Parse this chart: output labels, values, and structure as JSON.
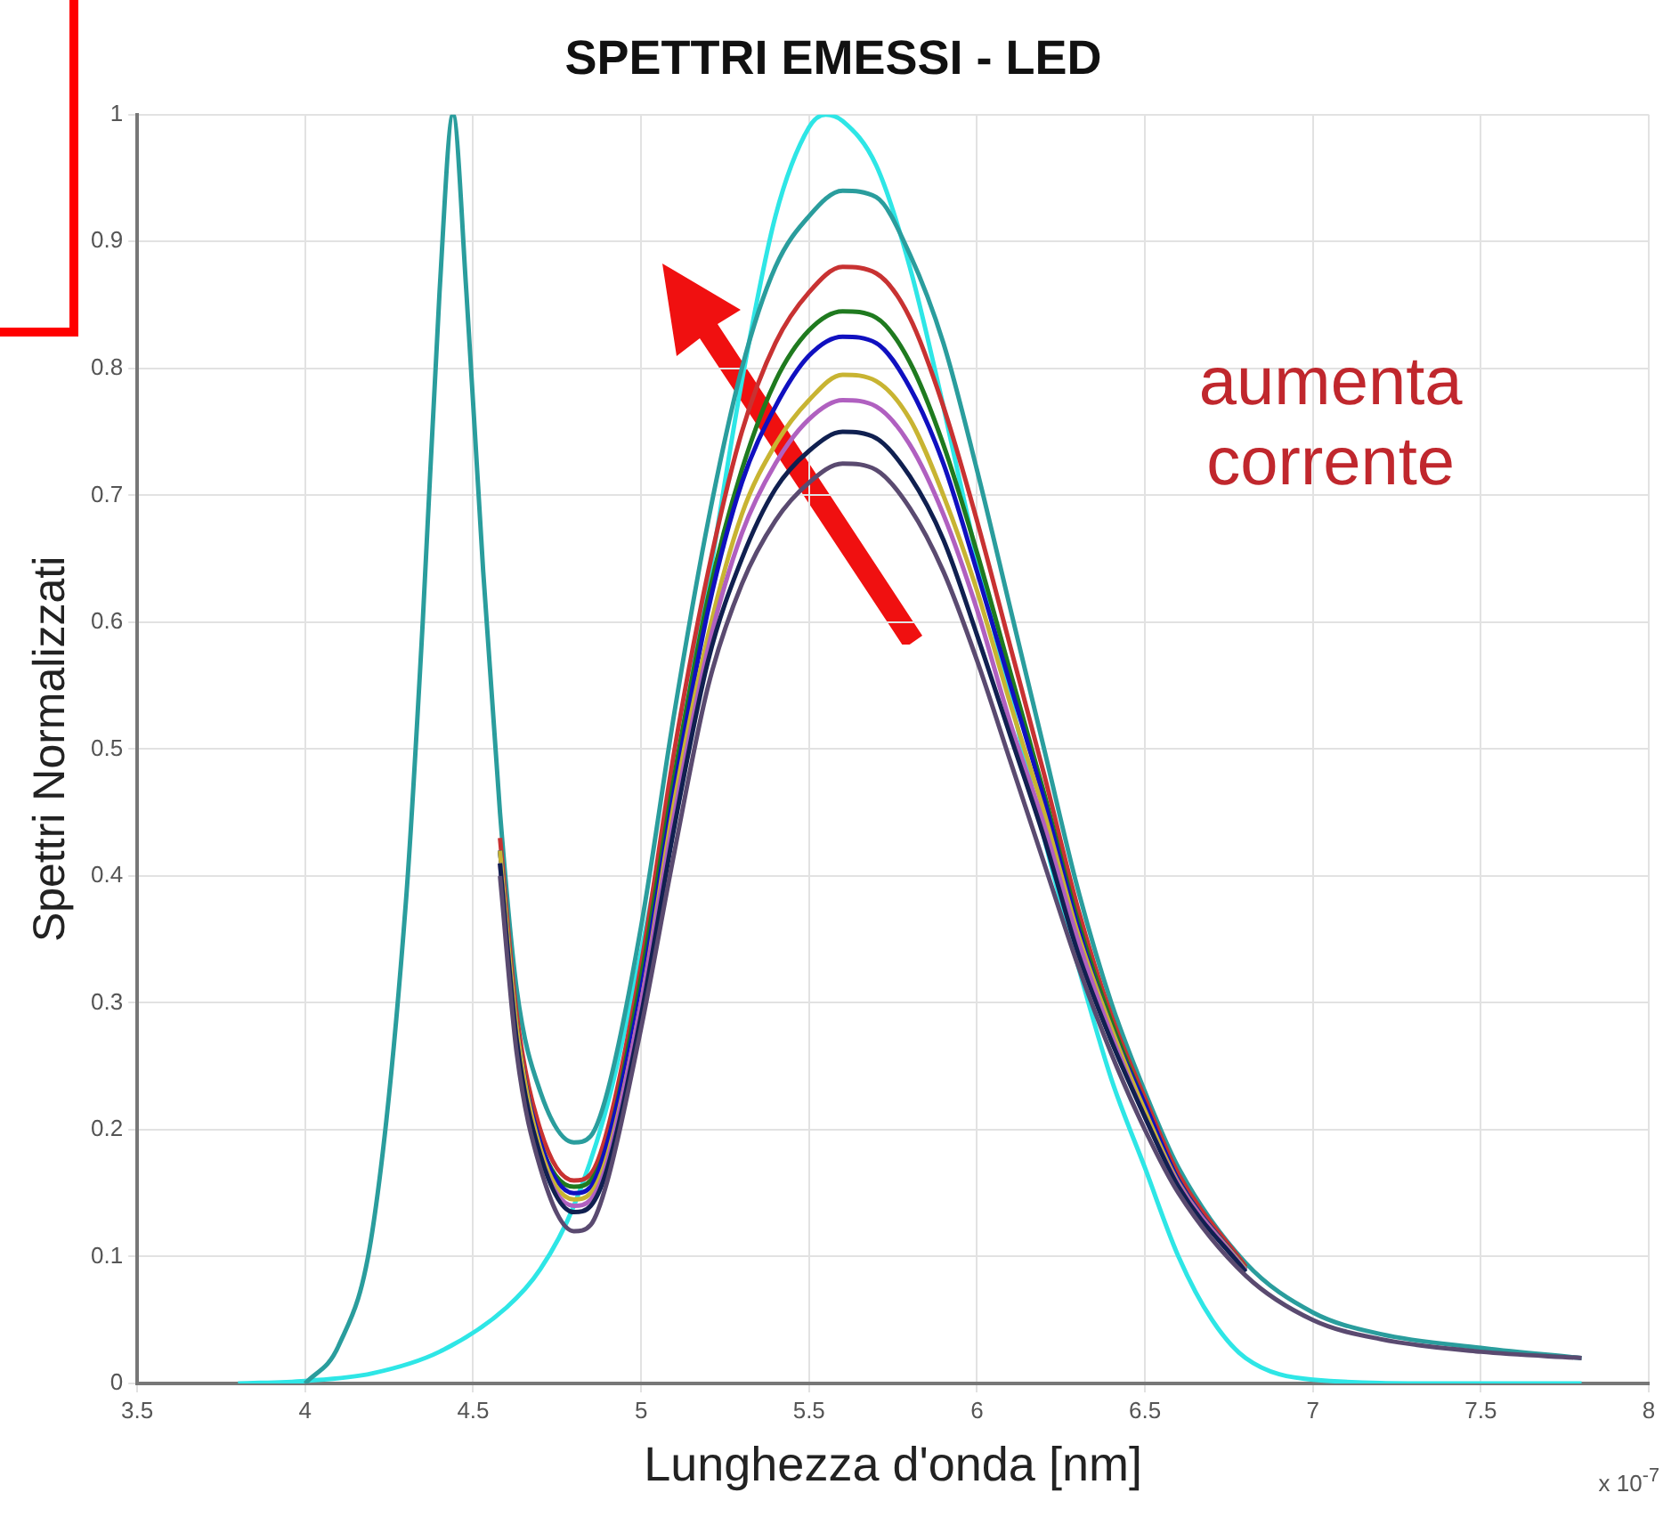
{
  "chart_data": {
    "type": "line",
    "title": "SPETTRI EMESSI - LED",
    "xlabel": "Lunghezza d'onda [nm]",
    "ylabel": "Spettri Normalizzati",
    "annotations": [
      "aumenta corrente",
      "x 10$^{-7}$"
    ],
    "xlim": [
      3.5,
      8
    ],
    "xticks": [
      3.5,
      4,
      4.5,
      5,
      5.5,
      6,
      6.5,
      7,
      7.5,
      8
    ],
    "ylim": [
      0,
      1
    ],
    "yticks": [
      0,
      0.1,
      0.2,
      0.3,
      0.4,
      0.5,
      0.6,
      0.7,
      0.8,
      0.9,
      1
    ],
    "grid": true,
    "legend": false,
    "marker": "none",
    "line_style": "solid",
    "x": [
      4.0,
      4.1,
      4.2,
      4.3,
      4.35,
      4.4,
      4.44,
      4.48,
      4.53,
      4.58,
      4.63,
      4.7,
      4.8,
      4.85,
      4.9,
      5.0,
      5.1,
      5.2,
      5.3,
      5.4,
      5.5,
      5.6,
      5.7,
      5.8,
      5.9,
      6.0,
      6.1,
      6.2,
      6.3,
      6.4,
      6.5,
      6.6,
      6.8,
      7.0,
      7.2,
      7.5,
      7.8
    ],
    "series": [
      {
        "color": "#5a4a70",
        "values": [
          null,
          null,
          null,
          null,
          null,
          null,
          null,
          null,
          null,
          0.4,
          0.26,
          0.17,
          0.12,
          0.125,
          0.16,
          0.28,
          0.42,
          0.55,
          0.63,
          0.68,
          0.71,
          0.725,
          0.72,
          0.69,
          0.64,
          0.57,
          0.49,
          0.41,
          0.33,
          0.26,
          0.2,
          0.15,
          0.085,
          0.05,
          0.035,
          0.025,
          0.02
        ]
      },
      {
        "color": "#102050",
        "values": [
          null,
          null,
          null,
          null,
          null,
          null,
          null,
          null,
          null,
          0.41,
          0.27,
          0.18,
          0.135,
          0.14,
          0.17,
          0.29,
          0.44,
          0.57,
          0.65,
          0.705,
          0.735,
          0.75,
          0.745,
          0.715,
          0.665,
          0.59,
          0.51,
          0.43,
          0.34,
          0.27,
          0.21,
          0.155,
          0.088,
          null,
          null,
          null,
          null
        ]
      },
      {
        "color": "#b060c0",
        "values": [
          null,
          null,
          null,
          null,
          null,
          null,
          null,
          null,
          null,
          0.41,
          0.27,
          0.18,
          0.14,
          0.145,
          0.175,
          0.3,
          0.45,
          0.58,
          0.67,
          0.725,
          0.76,
          0.775,
          0.77,
          0.74,
          0.685,
          0.61,
          0.52,
          0.44,
          0.35,
          0.275,
          0.21,
          0.157,
          0.089,
          null,
          null,
          null,
          null
        ]
      },
      {
        "color": "#c8b432",
        "values": [
          null,
          null,
          null,
          null,
          null,
          null,
          null,
          null,
          null,
          0.42,
          0.28,
          0.185,
          0.145,
          0.15,
          0.18,
          0.3,
          0.46,
          0.59,
          0.685,
          0.74,
          0.775,
          0.795,
          0.79,
          0.76,
          0.7,
          0.625,
          0.535,
          0.45,
          0.355,
          0.28,
          0.215,
          0.158,
          0.09,
          null,
          null,
          null,
          null
        ]
      },
      {
        "color": "#1010c0",
        "values": [
          null,
          null,
          null,
          null,
          null,
          null,
          null,
          null,
          null,
          0.42,
          0.28,
          0.19,
          0.15,
          0.155,
          0.19,
          0.31,
          0.47,
          0.61,
          0.71,
          0.77,
          0.81,
          0.825,
          0.82,
          0.785,
          0.725,
          0.64,
          0.55,
          0.46,
          0.36,
          0.28,
          0.22,
          0.16,
          0.09,
          null,
          null,
          null,
          null
        ]
      },
      {
        "color": "#1f7a1f",
        "values": [
          null,
          null,
          null,
          null,
          null,
          null,
          null,
          null,
          null,
          0.42,
          0.28,
          0.19,
          0.155,
          0.16,
          0.19,
          0.32,
          0.48,
          0.62,
          0.72,
          0.79,
          0.83,
          0.845,
          0.84,
          0.805,
          0.74,
          0.655,
          0.56,
          0.465,
          0.365,
          0.285,
          0.22,
          0.16,
          0.09,
          null,
          null,
          null,
          null
        ]
      },
      {
        "color": "#c83232",
        "values": [
          null,
          null,
          null,
          null,
          null,
          null,
          null,
          null,
          null,
          0.43,
          0.29,
          0.2,
          0.16,
          0.165,
          0.2,
          0.33,
          0.5,
          0.64,
          0.75,
          0.82,
          0.86,
          0.88,
          0.875,
          0.84,
          0.77,
          0.68,
          0.58,
          0.48,
          0.375,
          0.29,
          0.225,
          0.165,
          0.092,
          null,
          null,
          null,
          null
        ]
      },
      {
        "color": "#2a9d9d",
        "values": [
          0,
          0.03,
          0.12,
          0.38,
          0.6,
          0.86,
          1,
          0.86,
          0.64,
          0.45,
          0.31,
          0.23,
          0.19,
          0.195,
          0.23,
          0.36,
          0.53,
          0.68,
          0.8,
          0.88,
          0.92,
          0.94,
          0.935,
          0.89,
          0.82,
          0.72,
          0.61,
          0.5,
          0.39,
          0.3,
          0.23,
          0.17,
          0.095,
          0.056,
          0.039,
          0.028,
          0.02
        ]
      },
      {
        "color": "#2ee6e6",
        "x": [
          3.8,
          4.0,
          4.2,
          4.4,
          4.6,
          4.7,
          4.8,
          4.9,
          5.0,
          5.1,
          5.2,
          5.3,
          5.4,
          5.5,
          5.55,
          5.6,
          5.7,
          5.8,
          5.9,
          6.0,
          6.1,
          6.2,
          6.3,
          6.4,
          6.5,
          6.6,
          6.7,
          6.8,
          7.0,
          7.4,
          7.8
        ],
        "values": [
          0,
          0.002,
          0.008,
          0.025,
          0.06,
          0.09,
          0.14,
          0.22,
          0.34,
          0.48,
          0.63,
          0.79,
          0.92,
          0.99,
          1,
          0.995,
          0.96,
          0.88,
          0.77,
          0.65,
          0.54,
          0.43,
          0.33,
          0.24,
          0.17,
          0.1,
          0.05,
          0.02,
          0.003,
          0,
          0
        ]
      }
    ]
  }
}
